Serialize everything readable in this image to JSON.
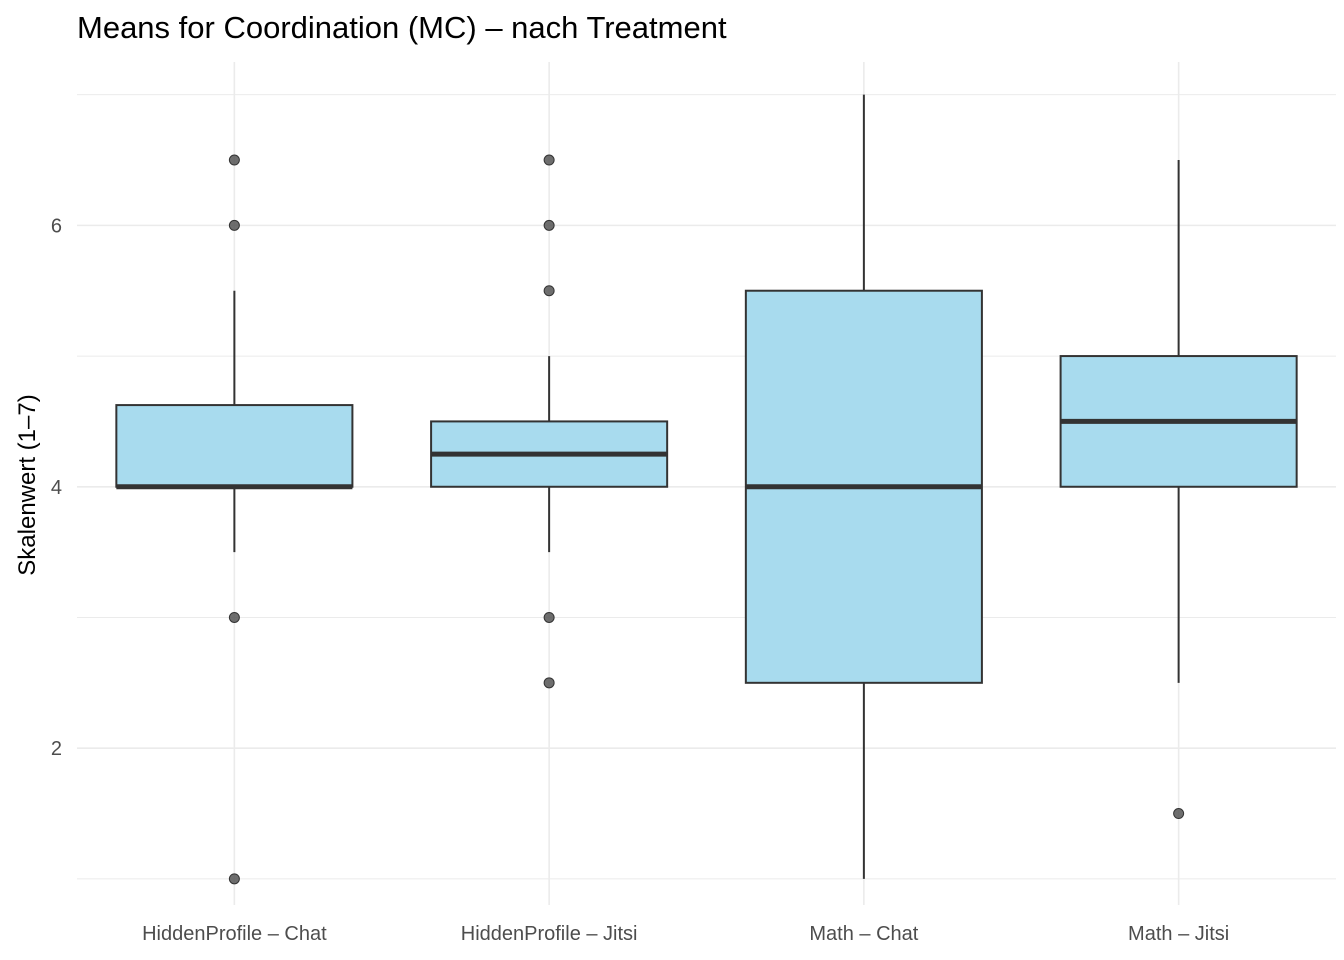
{
  "chart_data": {
    "type": "boxplot",
    "title": "Means for Coordination (MC) – nach Treatment",
    "xlabel": "",
    "ylabel": "Skalenwert (1–7)",
    "ylim": [
      0.8,
      7.25
    ],
    "yticks": [
      2,
      4,
      6
    ],
    "grid": true,
    "categories": [
      "HiddenProfile – Chat",
      "HiddenProfile – Jitsi",
      "Math – Chat",
      "Math – Jitsi"
    ],
    "boxes": [
      {
        "category": "HiddenProfile – Chat",
        "q1": 4.0,
        "median": 4.0,
        "q3": 4.625,
        "whisker_low": 3.5,
        "whisker_high": 5.5,
        "outliers": [
          1.0,
          3.0,
          6.0,
          6.5
        ]
      },
      {
        "category": "HiddenProfile – Jitsi",
        "q1": 4.0,
        "median": 4.25,
        "q3": 4.5,
        "whisker_low": 3.5,
        "whisker_high": 5.0,
        "outliers": [
          2.5,
          3.0,
          5.5,
          6.0,
          6.5
        ]
      },
      {
        "category": "Math – Chat",
        "q1": 2.5,
        "median": 4.0,
        "q3": 5.5,
        "whisker_low": 1.0,
        "whisker_high": 7.0,
        "outliers": []
      },
      {
        "category": "Math – Jitsi",
        "q1": 4.0,
        "median": 4.5,
        "q3": 5.0,
        "whisker_low": 2.5,
        "whisker_high": 6.5,
        "outliers": [
          1.5
        ]
      }
    ],
    "colors": {
      "box_fill": "#a8dbee",
      "box_line": "#333333",
      "grid": "#ebebeb",
      "outlier": "#555555"
    }
  }
}
